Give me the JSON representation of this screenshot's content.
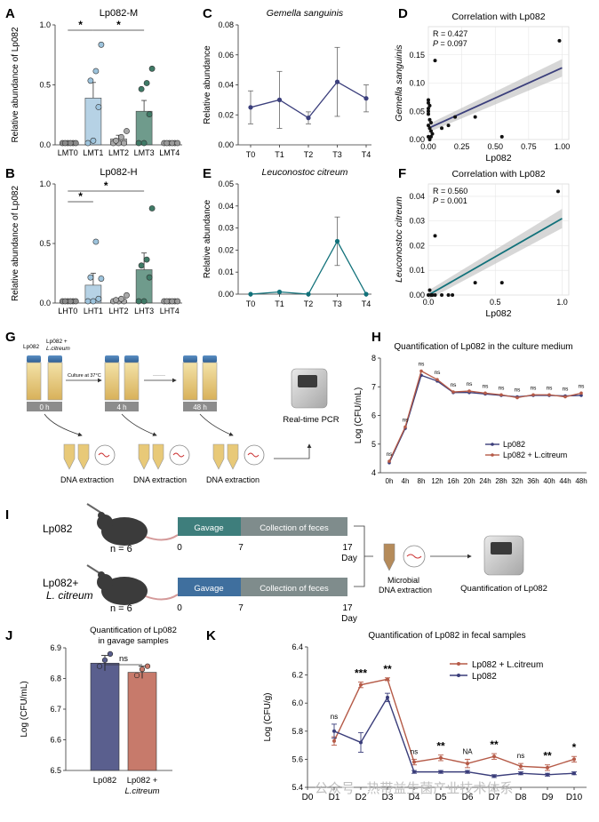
{
  "panels": {
    "A": "A",
    "B": "B",
    "C": "C",
    "D": "D",
    "E": "E",
    "F": "F",
    "G": "G",
    "H": "H",
    "I": "I",
    "J": "J",
    "K": "K"
  },
  "colors": {
    "lmt0": "#8a8a8a",
    "lmt1": "#9dc3dc",
    "lmt2": "#a9a9a9",
    "lmt3": "#3f7a66",
    "lmt4": "#9a9a9a",
    "gemella": "#3b3f7c",
    "leuco": "#11717a",
    "lp082": "#3a3d7a",
    "combo": "#b55a47",
    "j_lp082": "#5a5f8e",
    "j_combo": "#c77a6b",
    "gavage1": "#3e7e7c",
    "gavage2": "#3f6f9e",
    "collect": "#7f8c8c"
  },
  "chart_data": [
    {
      "id": "A",
      "type": "bar",
      "title": "Lp082-M",
      "ylabel": "Relative abundance of Lp082",
      "categories": [
        "LMT0",
        "LMT1",
        "LMT2",
        "LMT3",
        "LMT4"
      ],
      "values": [
        0.0,
        0.39,
        0.05,
        0.28,
        0.0
      ],
      "errors": [
        0.0,
        0.13,
        0.03,
        0.09,
        0.0
      ],
      "points": [
        [
          0,
          0,
          0,
          0,
          0,
          0
        ],
        [
          0.0,
          0.02,
          0.3,
          0.52,
          0.6,
          0.82
        ],
        [
          0,
          0,
          0,
          0.02,
          0.05,
          0.1
        ],
        [
          0.0,
          0.0,
          0.24,
          0.45,
          0.5,
          0.62
        ],
        [
          0,
          0,
          0,
          0,
          0,
          0
        ]
      ],
      "ylim": [
        0,
        1.0
      ],
      "yticks": [
        "0.0",
        "0.5",
        "1.0"
      ],
      "sig": [
        {
          "from": 0,
          "to": 1,
          "label": "*"
        },
        {
          "from": 1,
          "to": 3,
          "label": "*"
        }
      ]
    },
    {
      "id": "B",
      "type": "bar",
      "title": "Lp082-H",
      "ylabel": "Relative abundance of Lp082",
      "categories": [
        "LHT0",
        "LHT1",
        "LHT2",
        "LHT3",
        "LHT4"
      ],
      "values": [
        0.0,
        0.15,
        0.02,
        0.28,
        0.0
      ],
      "errors": [
        0.0,
        0.1,
        0.02,
        0.14,
        0.0
      ],
      "points": [
        [
          0,
          0,
          0,
          0,
          0,
          0
        ],
        [
          0.0,
          0.0,
          0.02,
          0.2,
          0.5,
          0.19
        ],
        [
          0,
          0,
          0,
          0.01,
          0.02,
          0.05
        ],
        [
          0.0,
          0.0,
          0.2,
          0.3,
          0.35,
          0.78
        ],
        [
          0,
          0,
          0,
          0,
          0,
          0
        ]
      ],
      "ylim": [
        0,
        1.0
      ],
      "yticks": [
        "0.0",
        "0.5",
        "1.0"
      ],
      "sig": [
        {
          "from": 0,
          "to": 1,
          "label": "*"
        },
        {
          "from": 0,
          "to": 3,
          "label": "*"
        }
      ]
    },
    {
      "id": "C",
      "type": "line",
      "title": "Gemella sanguinis",
      "ylabel": "Relative abundance",
      "categories": [
        "T0",
        "T1",
        "T2",
        "T3",
        "T4"
      ],
      "values": [
        0.025,
        0.03,
        0.018,
        0.042,
        0.031
      ],
      "errors": [
        0.011,
        0.019,
        0.004,
        0.023,
        0.009
      ],
      "ylim": [
        0,
        0.08
      ],
      "yticks": [
        "0.00",
        "0.02",
        "0.04",
        "0.06",
        "0.08"
      ]
    },
    {
      "id": "E",
      "type": "line",
      "title": "Leuconostoc citreum",
      "ylabel": "Relative abundance",
      "categories": [
        "T0",
        "T1",
        "T2",
        "T3",
        "T4"
      ],
      "values": [
        0.0,
        0.001,
        0.0,
        0.024,
        0.0
      ],
      "errors": [
        0.0,
        0.0,
        0.0,
        0.011,
        0.0
      ],
      "ylim": [
        0,
        0.05
      ],
      "yticks": [
        "0.00",
        "0.01",
        "0.02",
        "0.03",
        "0.04",
        "0.05"
      ]
    },
    {
      "id": "D",
      "type": "scatter",
      "title": "Correlation with Lp082",
      "xlabel": "Lp082",
      "ylabel": "Gemella sanguinis",
      "r_text": "R = 0.427",
      "p_text": "P = 0.097",
      "p_label": "P",
      "p_value": "= 0.097",
      "x": [
        0.0,
        0.0,
        0.01,
        0.0,
        0.01,
        0.02,
        0.0,
        0.01,
        0.02,
        0.03,
        0.0,
        0.01,
        0.02,
        0.05,
        0.1,
        0.15,
        0.2,
        0.35,
        0.55,
        0.98,
        0.0,
        0.0
      ],
      "y": [
        0.07,
        0.065,
        0.06,
        0.045,
        0.035,
        0.03,
        0.025,
        0.02,
        0.015,
        0.01,
        0.005,
        0.0,
        0.005,
        0.14,
        0.02,
        0.025,
        0.04,
        0.04,
        0.005,
        0.175,
        0.05,
        0.055
      ],
      "fit": [
        [
          0,
          0.02
        ],
        [
          1,
          0.127
        ]
      ],
      "xlim": [
        0,
        1.05
      ],
      "ylim": [
        0,
        0.2
      ],
      "xticks": [
        "0.00",
        "0.25",
        "0.50",
        "0.75",
        "1.00"
      ],
      "yticks": [
        "0.00",
        "0.05",
        "0.10",
        "0.15"
      ]
    },
    {
      "id": "F",
      "type": "scatter",
      "title": "Correlation with Lp082",
      "xlabel": "Lp082",
      "ylabel": "Leuconostoc citreum",
      "r_text": "R = 0.560",
      "p_text": "P = 0.001",
      "p_label": "P",
      "p_value": "= 0.001",
      "x": [
        0.0,
        0.01,
        0.02,
        0.03,
        0.05,
        0.05,
        0.1,
        0.15,
        0.18,
        0.35,
        0.55,
        0.97
      ],
      "y": [
        0.0,
        0.002,
        0.0,
        0.0,
        0.0,
        0.024,
        0.0,
        0.0,
        0.0,
        0.005,
        0.005,
        0.042
      ],
      "fit": [
        [
          0,
          0.0
        ],
        [
          1,
          0.031
        ]
      ],
      "xlim": [
        0,
        1.05
      ],
      "ylim": [
        0,
        0.045
      ],
      "xticks": [
        "0.0",
        "0.5",
        "1.0"
      ],
      "yticks": [
        "0.00",
        "0.01",
        "0.02",
        "0.03",
        "0.04"
      ]
    },
    {
      "id": "H",
      "type": "line",
      "title": "Quantification of Lp082 in the culture medium",
      "ylabel": "Log (CFU/mL)",
      "categories": [
        "0h",
        "4h",
        "8h",
        "12h",
        "16h",
        "20h",
        "24h",
        "28h",
        "32h",
        "36h",
        "40h",
        "44h",
        "48h"
      ],
      "series": [
        {
          "name": "Lp082",
          "values": [
            4.35,
            5.55,
            7.4,
            7.2,
            6.8,
            6.8,
            6.75,
            6.7,
            6.65,
            6.7,
            6.7,
            6.68,
            6.7
          ]
        },
        {
          "name": "Lp082 + L.citreum",
          "values": [
            4.4,
            5.6,
            7.55,
            7.25,
            6.82,
            6.85,
            6.78,
            6.72,
            6.62,
            6.72,
            6.72,
            6.65,
            6.78
          ]
        }
      ],
      "ns_labels": [
        "ns",
        "ns",
        "ns",
        "ns",
        "ns",
        "ns",
        "ns",
        "ns",
        "ns",
        "ns",
        "ns",
        "ns",
        "ns"
      ],
      "ylim": [
        4,
        8
      ],
      "yticks": [
        "4",
        "5",
        "6",
        "7",
        "8"
      ]
    },
    {
      "id": "J",
      "type": "bar",
      "title_lines": [
        "Quantification of Lp082",
        "in gavage samples"
      ],
      "ylabel": "Log (CFU/mL)",
      "categories": [
        "Lp082",
        "Lp082 +"
      ],
      "category_sub": [
        "",
        "L.citreum"
      ],
      "values": [
        6.85,
        6.82
      ],
      "errors": [
        0.025,
        0.02
      ],
      "points": [
        [
          6.84,
          6.86,
          6.88
        ],
        [
          6.81,
          6.83,
          6.84
        ]
      ],
      "ylim": [
        6.5,
        6.9
      ],
      "yticks": [
        "6.5",
        "6.6",
        "6.7",
        "6.8",
        "6.9"
      ],
      "sig_label": "ns"
    },
    {
      "id": "K",
      "type": "line",
      "title": "Quantification of Lp082 in fecal samples",
      "ylabel": "Log (CFU/g)",
      "categories": [
        "D0",
        "D1",
        "D2",
        "D3",
        "D4",
        "D5",
        "D6",
        "D7",
        "D8",
        "D9",
        "D10"
      ],
      "series": [
        {
          "name": "Lp082 + L.citreum",
          "values": [
            null,
            5.73,
            6.13,
            6.17,
            5.58,
            5.61,
            5.57,
            5.62,
            5.55,
            5.54,
            5.6
          ],
          "errors": [
            null,
            0.03,
            0.02,
            0.01,
            0.02,
            0.02,
            0.03,
            0.02,
            0.02,
            0.02,
            0.02
          ]
        },
        {
          "name": "Lp082",
          "values": [
            null,
            5.8,
            5.72,
            6.04,
            5.51,
            5.51,
            5.51,
            5.48,
            5.5,
            5.49,
            5.5
          ],
          "errors": [
            null,
            0.05,
            0.07,
            0.03,
            0.01,
            0.01,
            0.01,
            0.01,
            0.01,
            0.01,
            0.01
          ]
        }
      ],
      "sig_labels": [
        "",
        "ns",
        "***",
        "**",
        "ns",
        "**",
        "NA",
        "**",
        "ns",
        "**",
        "*"
      ],
      "ylim": [
        5.4,
        6.4
      ],
      "yticks": [
        "5.4",
        "5.6",
        "5.8",
        "6.0",
        "6.2",
        "6.4"
      ]
    }
  ],
  "panel_g": {
    "tube1": "Lp082",
    "tube2_line1": "Lp082 +",
    "tube2_line2": "L.citreum",
    "culture": "Culture at 37°C",
    "t0": "0 h",
    "t4": "4 h",
    "t48": "48 h",
    "dna1": "DNA extraction",
    "dna2": "DNA extraction",
    "dna3": "DNA extraction",
    "pcr": "Real-time PCR"
  },
  "panel_i": {
    "group1": "Lp082",
    "group2_line1": "Lp082+",
    "group2_line2": "L. citreum",
    "n1": "n = 6",
    "n2": "n = 6",
    "gavage": "Gavage",
    "collection": "Collection of feces",
    "d0": "0",
    "d7": "7",
    "d17": "17",
    "day": "Day",
    "d0b": "0",
    "d7b": "7",
    "d17b": "17",
    "dayb": "Day",
    "microbial": "Microbial",
    "dna_ext": "DNA extraction",
    "quant": "Quantification of Lp082"
  },
  "watermark": "公众号 · 热带益生菌产业技术体系"
}
